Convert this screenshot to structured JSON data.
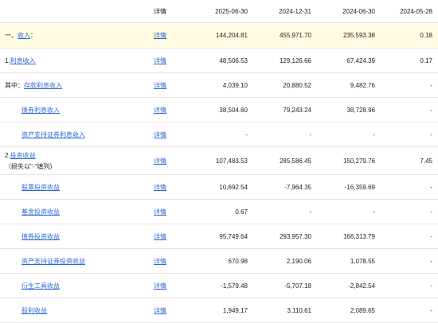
{
  "header": {
    "name": "",
    "detail": "详情",
    "periods": [
      "2025-06-30",
      "2024-12-31",
      "2024-06-30",
      "2024-05-28"
    ]
  },
  "rows": [
    {
      "prefix": "一、",
      "label": "收入",
      "suffix": "：",
      "detail": "详情",
      "values": [
        "144,204.81",
        "455,971.70",
        "235,593.38",
        "0.18"
      ]
    },
    {
      "prefix": "1.",
      "label": "利息收入",
      "suffix": "",
      "detail": "详情",
      "values": [
        "48,506.53",
        "129,126.66",
        "67,424.39",
        "0.17"
      ]
    },
    {
      "prefix": "其中：",
      "label": "存款利息收入",
      "suffix": "",
      "detail": "详情",
      "values": [
        "4,039.10",
        "20,880.52",
        "9,482.76",
        "-"
      ]
    },
    {
      "prefix": "",
      "label": "债券利息收入",
      "suffix": "",
      "detail": "详情",
      "values": [
        "38,504.60",
        "79,243.24",
        "38,728.96",
        "-"
      ]
    },
    {
      "prefix": "",
      "label": "资产支持证券利息收入",
      "suffix": "",
      "detail": "详情",
      "values": [
        "-",
        "-",
        "-",
        "-"
      ]
    },
    {
      "prefix": "2.",
      "label": "投资收益",
      "suffix": "",
      "note": "（损失以\"-\"填列）",
      "detail": "详情",
      "values": [
        "107,483.53",
        "285,586.45",
        "150,279.76",
        "7.45"
      ]
    },
    {
      "prefix": "",
      "label": "股票投资收益",
      "suffix": "",
      "detail": "详情",
      "values": [
        "10,692.54",
        "-7,964.35",
        "-16,359.69",
        "-"
      ]
    },
    {
      "prefix": "",
      "label": "基金投资收益",
      "suffix": "",
      "detail": "详情",
      "values": [
        "0.67",
        "-",
        "-",
        "-"
      ]
    },
    {
      "prefix": "",
      "label": "债券投资收益",
      "suffix": "",
      "detail": "详情",
      "values": [
        "95,749.64",
        "293,957.30",
        "166,313.79",
        "-"
      ]
    },
    {
      "prefix": "",
      "label": "资产支持证券投资收益",
      "suffix": "",
      "detail": "详情",
      "values": [
        "670.98",
        "2,190.06",
        "1,078.55",
        "-"
      ]
    },
    {
      "prefix": "",
      "label": "衍生工具收益",
      "suffix": "",
      "detail": "详情",
      "values": [
        "-1,579.48",
        "-5,707.18",
        "-2,842.54",
        "-"
      ]
    },
    {
      "prefix": "",
      "label": "股利收益",
      "suffix": "",
      "detail": "详情",
      "values": [
        "1,949.17",
        "3,110.61",
        "2,089.65",
        "-"
      ]
    }
  ]
}
